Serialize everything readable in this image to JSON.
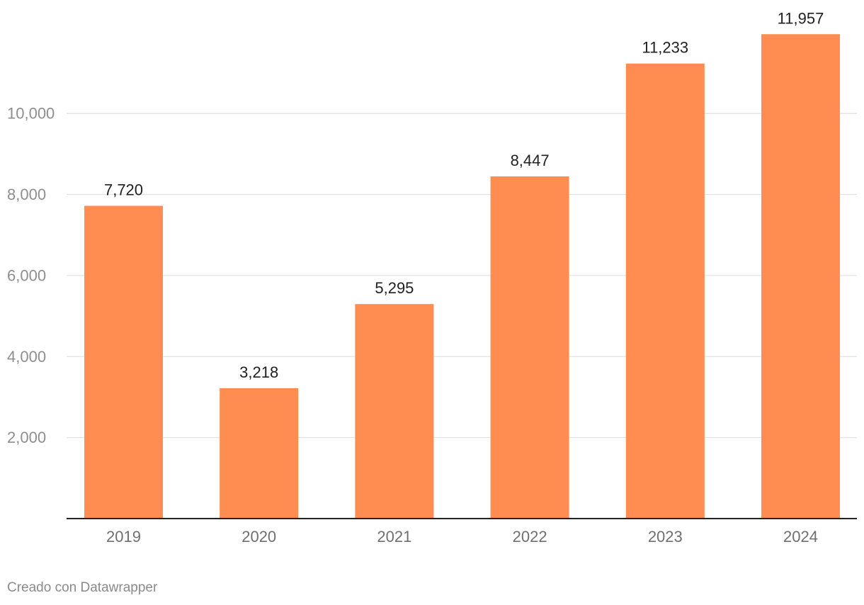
{
  "chart_data": {
    "type": "bar",
    "categories": [
      "2019",
      "2020",
      "2021",
      "2022",
      "2023",
      "2024"
    ],
    "values": [
      7720,
      3218,
      5295,
      8447,
      11233,
      11957
    ],
    "value_labels": [
      "7,720",
      "3,218",
      "5,295",
      "8,447",
      "11,233",
      "11,957"
    ],
    "ylim": [
      0,
      12000
    ],
    "yticks": [
      2000,
      4000,
      6000,
      8000,
      10000
    ],
    "ytick_labels": [
      "2,000",
      "4,000",
      "6,000",
      "8,000",
      "10,000"
    ],
    "bar_color": "#ff8c50",
    "grid": true
  },
  "footer": {
    "credit": "Creado con Datawrapper"
  }
}
